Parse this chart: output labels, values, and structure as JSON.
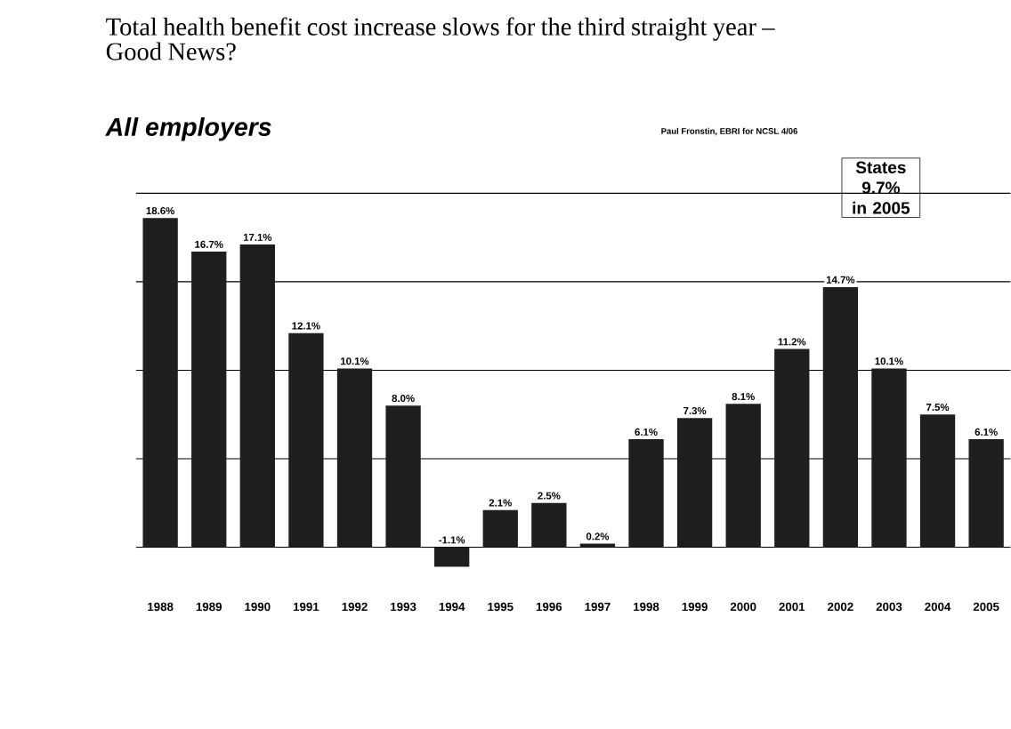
{
  "chart_data": {
    "type": "bar",
    "title": "Total health benefit cost increase slows for the third straight year – Good News?",
    "subtitle": "All employers",
    "annotations": [
      "Paul Fronstin, EBRI for NCSL 4/06",
      "States 9.7% in 2005"
    ],
    "categories": [
      "1988",
      "1989",
      "1990",
      "1991",
      "1992",
      "1993",
      "1994",
      "1995",
      "1996",
      "1997",
      "1998",
      "1999",
      "2000",
      "2001",
      "2002",
      "2003",
      "2004",
      "2005"
    ],
    "values": [
      18.6,
      16.7,
      17.1,
      12.1,
      10.1,
      8.0,
      -1.1,
      2.1,
      2.5,
      0.2,
      6.1,
      7.3,
      8.1,
      11.2,
      14.7,
      10.1,
      7.5,
      6.1
    ],
    "value_labels": [
      "18.6%",
      "16.7%",
      "17.1%",
      "12.1%",
      "10.1%",
      "8.0%",
      "-1.1%",
      "2.1%",
      "2.5%",
      "0.2%",
      "6.1%",
      "7.3%",
      "8.1%",
      "11.2%",
      "14.7%",
      "10.1%",
      "7.5%",
      "6.1%"
    ],
    "color": "#1e1e1e",
    "yticks": [
      {
        "value": 0,
        "label": null
      },
      {
        "value": 5,
        "label": null
      },
      {
        "value": 10,
        "label": null
      },
      {
        "value": 15,
        "label": null
      },
      {
        "value": 20,
        "label": null
      }
    ],
    "grid": "y",
    "tick_labels": "x"
  }
}
